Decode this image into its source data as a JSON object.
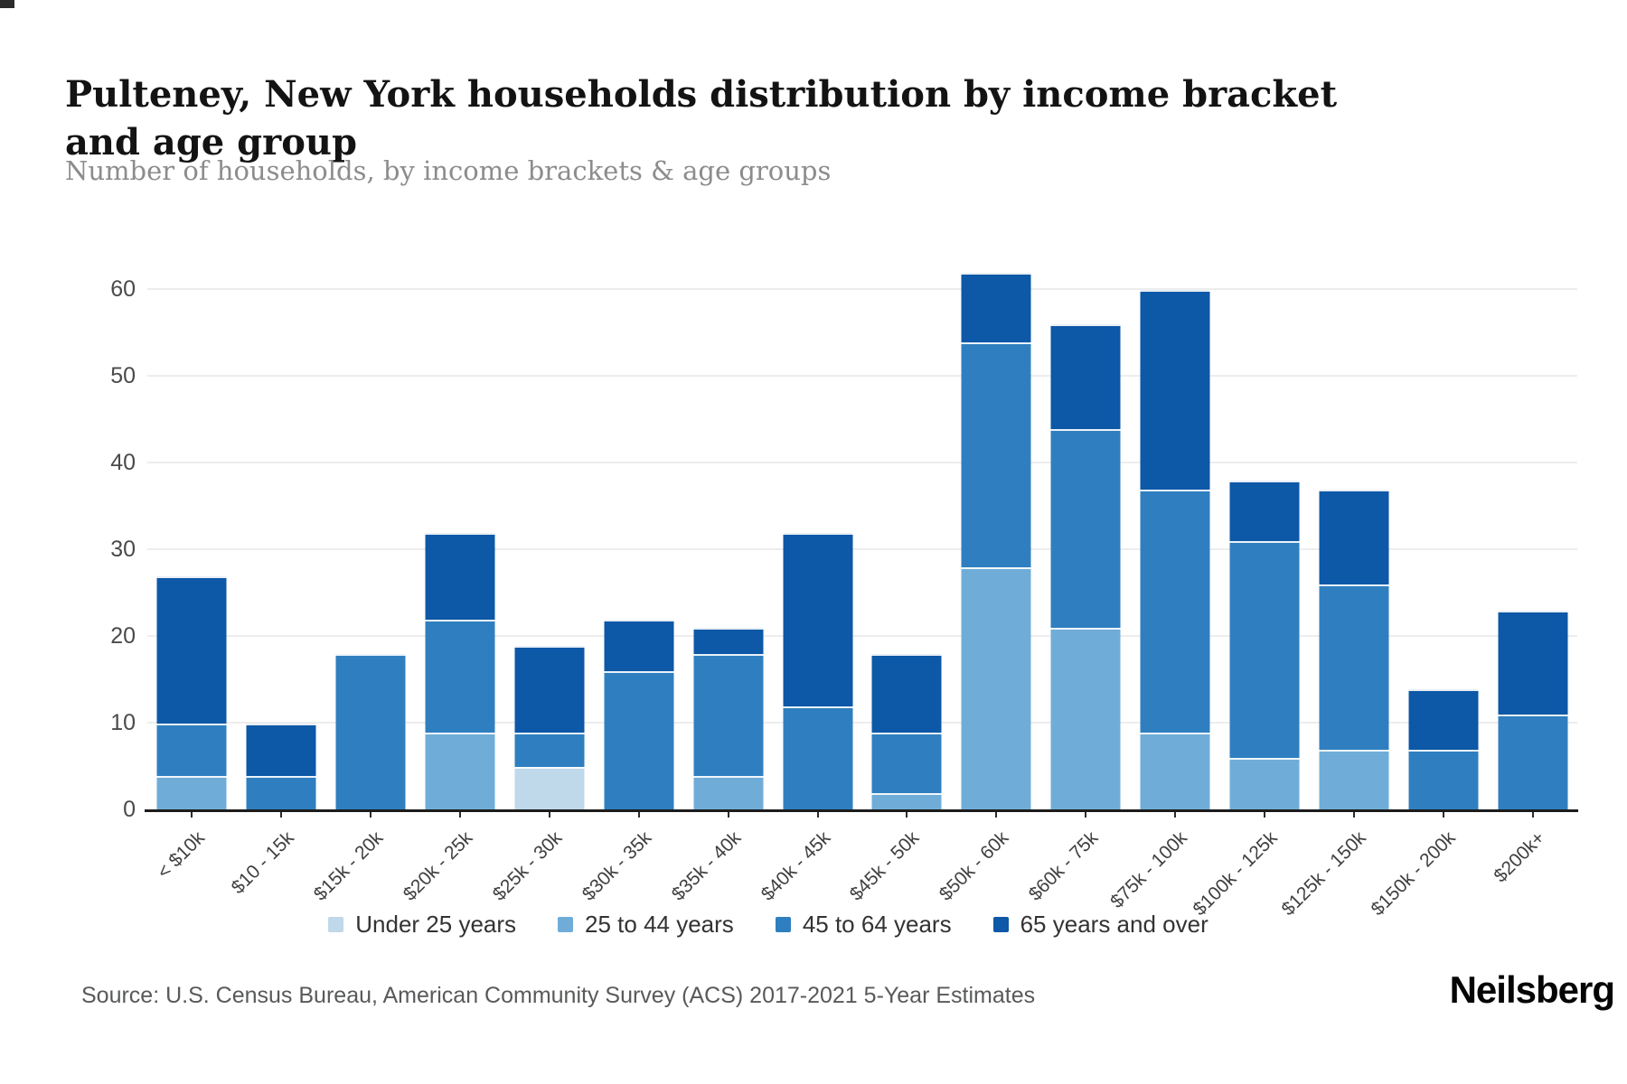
{
  "chart_data": {
    "type": "bar",
    "stacked": true,
    "title": "Pulteney, New York households distribution by income bracket and age group",
    "subtitle": "Number of households, by income brackets & age groups",
    "categories": [
      "< $10k",
      "$10 - 15k",
      "$15k - 20k",
      "$20k - 25k",
      "$25k - 30k",
      "$30k - 35k",
      "$35k - 40k",
      "$40k - 45k",
      "$45k - 50k",
      "$50k - 60k",
      "$60k - 75k",
      "$75k - 100k",
      "$100k - 125k",
      "$125k - 150k",
      "$150k - 200k",
      "$200k+"
    ],
    "series": [
      {
        "name": "Under 25 years",
        "color": "#bfd8ea",
        "values": [
          0,
          0,
          0,
          0,
          5,
          0,
          0,
          0,
          0,
          0,
          0,
          0,
          0,
          0,
          0,
          0
        ]
      },
      {
        "name": "25 to 44 years",
        "color": "#6fadd8",
        "values": [
          4,
          0,
          0,
          9,
          0,
          0,
          4,
          0,
          2,
          28,
          21,
          9,
          6,
          7,
          0,
          0
        ]
      },
      {
        "name": "45 to 64 years",
        "color": "#2f7fc0",
        "values": [
          6,
          4,
          18,
          13,
          4,
          16,
          14,
          12,
          7,
          26,
          23,
          28,
          25,
          19,
          7,
          11
        ]
      },
      {
        "name": "65 years and over",
        "color": "#0d58a7",
        "values": [
          17,
          6,
          0,
          10,
          10,
          6,
          3,
          20,
          9,
          8,
          12,
          23,
          7,
          11,
          7,
          12
        ]
      }
    ],
    "totals": [
      27,
      10,
      18,
      32,
      19,
      22,
      21,
      32,
      18,
      62,
      56,
      60,
      38,
      37,
      14,
      23
    ],
    "xlabel": "",
    "ylabel": "",
    "ylim": [
      0,
      65
    ],
    "yticks": [
      0,
      10,
      20,
      30,
      40,
      50,
      60
    ],
    "grid": true,
    "legend_position": "bottom"
  },
  "footer": {
    "source": "Source: U.S. Census Bureau, American Community Survey (ACS) 2017-2021 5-Year Estimates",
    "logo": "Neilsberg"
  }
}
